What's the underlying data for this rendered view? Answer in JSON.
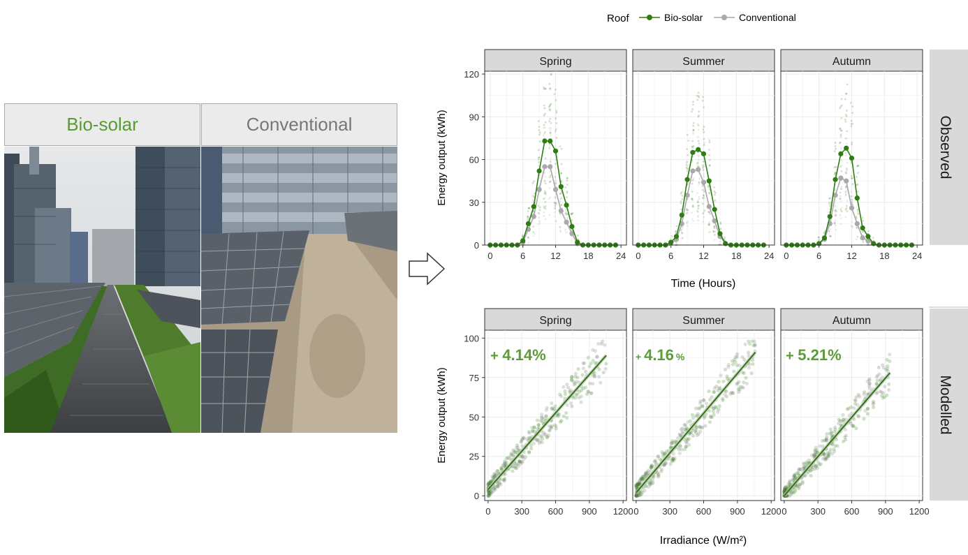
{
  "photos": {
    "biosolar": {
      "label": "Bio-solar",
      "color": "#5a9a32"
    },
    "conventional": {
      "label": "Conventional",
      "color": "#777777"
    }
  },
  "legend": {
    "title": "Roof",
    "items": [
      {
        "label": "Bio-solar",
        "color": "#2e7d12"
      },
      {
        "label": "Conventional",
        "color": "#a9a9a9"
      }
    ]
  },
  "chart_data": [
    {
      "type": "line",
      "row": "Observed",
      "facets": [
        "Spring",
        "Summer",
        "Autumn"
      ],
      "xlabel": "Time (Hours)",
      "ylabel": "Energy output (kWh)",
      "xlim": [
        -1,
        25
      ],
      "ylim": [
        0,
        122
      ],
      "xticks": [
        0,
        6,
        12,
        18,
        24
      ],
      "yticks": [
        0,
        30,
        60,
        90,
        120
      ],
      "grid": true,
      "legend_position": "top",
      "x": [
        0,
        1,
        2,
        3,
        4,
        5,
        6,
        7,
        8,
        9,
        10,
        11,
        12,
        13,
        14,
        15,
        16,
        17,
        18,
        19,
        20,
        21,
        22,
        23
      ],
      "panels": [
        {
          "facet": "Spring",
          "series": [
            {
              "name": "Bio-solar",
              "values": [
                0,
                0,
                0,
                0,
                0,
                0,
                3,
                15,
                27,
                52,
                73,
                73,
                66,
                41,
                28,
                13,
                2,
                0,
                0,
                0,
                0,
                0,
                0,
                0
              ]
            },
            {
              "name": "Conventional",
              "values": [
                0,
                0,
                0,
                0,
                0,
                0,
                2,
                11,
                20,
                39,
                55,
                55,
                39,
                24,
                16,
                8,
                1,
                0,
                0,
                0,
                0,
                0,
                0,
                0
              ]
            }
          ]
        },
        {
          "facet": "Summer",
          "series": [
            {
              "name": "Bio-solar",
              "values": [
                0,
                0,
                0,
                0,
                0,
                0,
                2,
                6,
                21,
                46,
                65,
                67,
                64,
                45,
                25,
                8,
                1,
                0,
                0,
                0,
                0,
                0,
                0,
                0
              ]
            },
            {
              "name": "Conventional",
              "values": [
                0,
                0,
                0,
                0,
                0,
                0,
                1,
                4,
                15,
                35,
                52,
                53,
                44,
                27,
                17,
                6,
                1,
                0,
                0,
                0,
                0,
                0,
                0,
                0
              ]
            }
          ]
        },
        {
          "facet": "Autumn",
          "series": [
            {
              "name": "Bio-solar",
              "values": [
                0,
                0,
                0,
                0,
                0,
                0,
                1,
                5,
                20,
                46,
                64,
                68,
                61,
                33,
                12,
                6,
                1,
                0,
                0,
                0,
                0,
                0,
                0,
                0
              ]
            },
            {
              "name": "Conventional",
              "values": [
                0,
                0,
                0,
                0,
                0,
                0,
                1,
                4,
                15,
                35,
                47,
                45,
                26,
                15,
                5,
                3,
                1,
                0,
                0,
                0,
                0,
                0,
                0,
                0
              ]
            }
          ]
        }
      ]
    },
    {
      "type": "scatter",
      "row": "Modelled",
      "facets": [
        "Spring",
        "Summer",
        "Autumn"
      ],
      "xlabel": "Irradiance (W/m²)",
      "ylabel": "Energy output (kWh)",
      "xlim": [
        -30,
        1230
      ],
      "ylim": [
        -3,
        105
      ],
      "xticks": [
        0,
        300,
        600,
        900,
        1200
      ],
      "yticks": [
        0,
        25,
        50,
        75,
        100
      ],
      "grid": true,
      "panels": [
        {
          "facet": "Spring",
          "annotation_prefix": "+ ",
          "annotation_value": "4.14",
          "annotation_unit": "%",
          "fit_line": [
            [
              0,
              4
            ],
            [
              1050,
              89
            ]
          ],
          "x_max": 1050
        },
        {
          "facet": "Summer",
          "annotation_prefix": "+ ",
          "annotation_value": "4.16",
          "annotation_unit": "%",
          "fit_line": [
            [
              0,
              2
            ],
            [
              1060,
              91
            ]
          ],
          "x_max": 1060
        },
        {
          "facet": "Autumn",
          "annotation_prefix": "+ ",
          "annotation_value": "5.21",
          "annotation_unit": "%",
          "fit_line": [
            [
              0,
              0
            ],
            [
              940,
              78
            ]
          ],
          "x_max": 940
        }
      ]
    }
  ]
}
